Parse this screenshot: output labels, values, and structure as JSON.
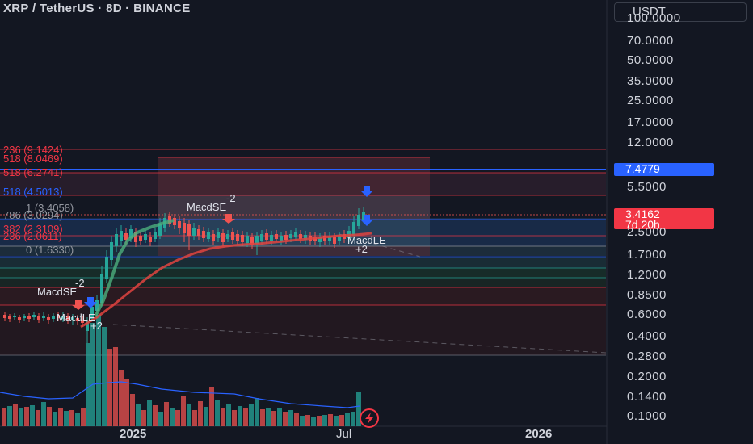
{
  "header": {
    "title": "XRP / TetherUS · 8D · BINANCE",
    "currency": "USDT"
  },
  "price_axis": {
    "ticks": [
      "100.0000",
      "70.0000",
      "50.0000",
      "35.0000",
      "25.0000",
      "17.0000",
      "12.0000",
      "5.5000",
      "2.5000",
      "1.7000",
      "1.2000",
      "0.8500",
      "0.6000",
      "0.4000",
      "0.2800",
      "0.2000",
      "0.1400",
      "0.1000"
    ],
    "last_price": "3.4162",
    "countdown": "7d 20h",
    "target_price": "7.4779"
  },
  "time_axis": {
    "labels": [
      "2025",
      "Jul",
      "2026"
    ]
  },
  "fib_levels": [
    {
      "label": "236 (9.1424)",
      "color": "#f23645"
    },
    {
      "label": "518 (8.0469)",
      "color": "#f23645"
    },
    {
      "label": "518 (6.2741)",
      "color": "#f23645"
    },
    {
      "label": "518 (4.5013)",
      "color": "#2962ff"
    },
    {
      "label": "1 (3.4058)",
      "color": "#9598a1"
    },
    {
      "label": "786 (3.0294)",
      "color": "#9598a1"
    },
    {
      "label": "382 (2.3109)",
      "color": "#f23645"
    },
    {
      "label": "236 (2.0611)",
      "color": "#f23645"
    },
    {
      "label": "0 (1.6330)",
      "color": "#9598a1"
    }
  ],
  "signals": {
    "macd_se_1": {
      "text": "MacdSE",
      "qty": "-2"
    },
    "macd_le_1": {
      "text": "MacdLE",
      "qty": "+2"
    },
    "macd_se_2": {
      "text": "MacdSE",
      "qty": "-2"
    },
    "macd_le_2": {
      "text": "MacdLE",
      "qty": "+2"
    }
  },
  "colors": {
    "up": "#26a69a",
    "down": "#ef5350",
    "blue": "#2962ff",
    "bg": "#131722"
  },
  "icons": {
    "replay": "lightning-icon"
  }
}
